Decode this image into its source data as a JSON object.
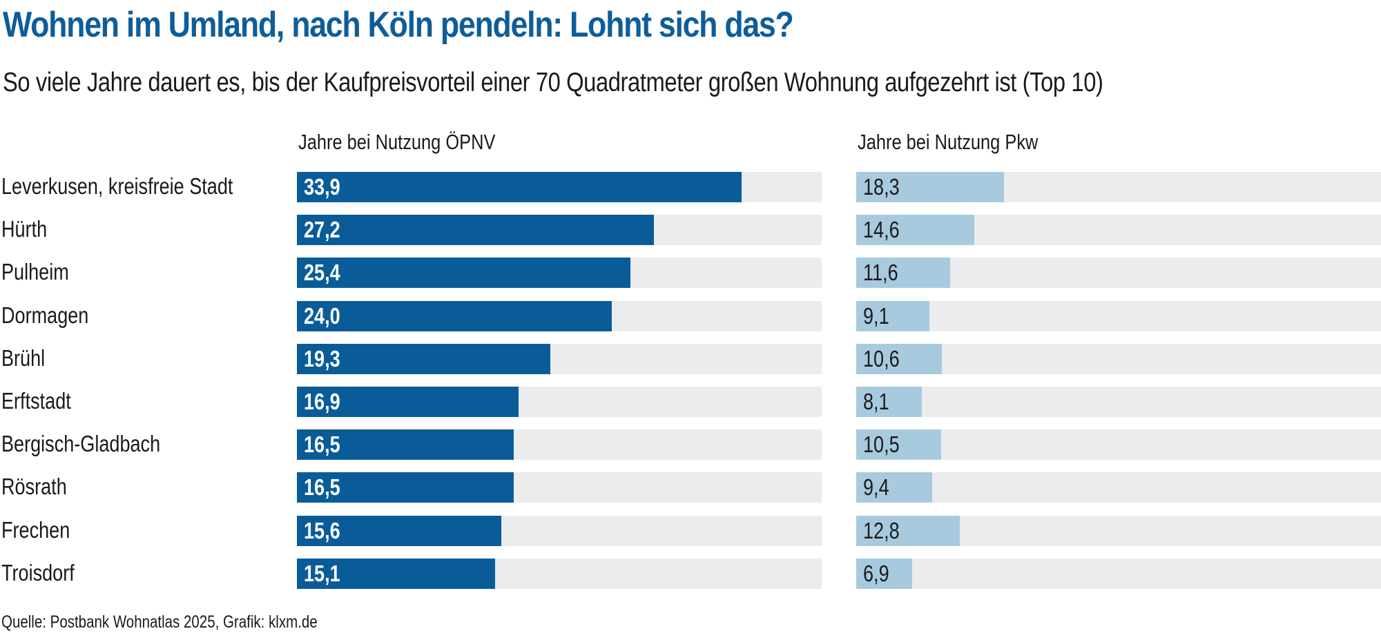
{
  "chart_data": {
    "type": "bar",
    "title": "Wohnen im Umland, nach Köln pendeln: Lohnt sich das?",
    "subtitle": "So viele Jahre dauert es, bis der Kaufpreisvorteil einer 70 Quadratmeter großen Wohnung aufgezehrt ist (Top 10)",
    "categories": [
      "Leverkusen, kreisfreie Stadt",
      "Hürth",
      "Pulheim",
      "Dormagen",
      "Brühl",
      "Erftstadt",
      "Bergisch-Gladbach",
      "Rösrath",
      "Frechen",
      "Troisdorf"
    ],
    "series": [
      {
        "name": "Jahre bei Nutzung ÖPNV",
        "values": [
          33.9,
          27.2,
          25.4,
          24.0,
          19.3,
          16.9,
          16.5,
          16.5,
          15.6,
          15.1
        ],
        "labels": [
          "33,9",
          "27,2",
          "25,4",
          "24,0",
          "19,3",
          "16,9",
          "16,5",
          "16,5",
          "15,6",
          "15,1"
        ],
        "color": "#0a5c99",
        "scale_max": 40
      },
      {
        "name": "Jahre bei Nutzung Pkw",
        "values": [
          18.3,
          14.6,
          11.6,
          9.1,
          10.6,
          8.1,
          10.5,
          9.4,
          12.8,
          6.9
        ],
        "labels": [
          "18,3",
          "14,6",
          "11,6",
          "9,1",
          "10,6",
          "8,1",
          "10,5",
          "9,4",
          "12,8",
          "6,9"
        ],
        "color": "#a8cadf",
        "scale_max": 65
      }
    ],
    "xlabel": "",
    "ylabel": "",
    "grid": false,
    "legend": "column headers",
    "source": "Quelle: Postbank Wohnatlas 2025, Grafik: klxm.de"
  }
}
